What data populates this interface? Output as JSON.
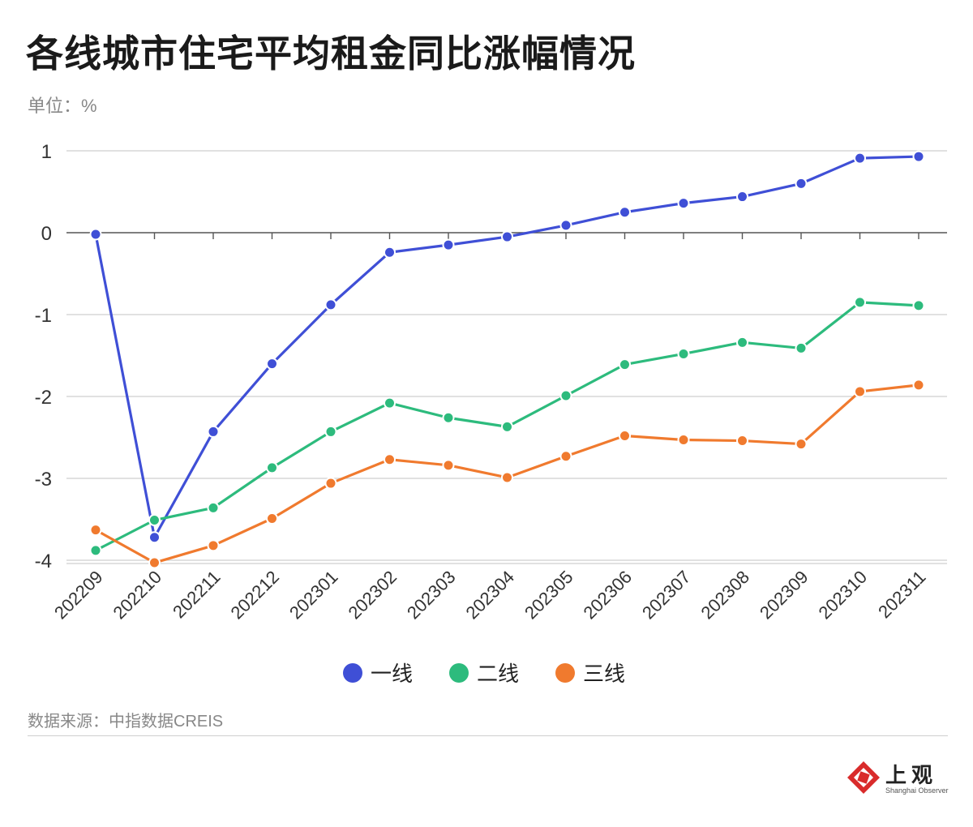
{
  "title": "各线城市住宅平均租金同比涨幅情况",
  "unit": "单位：%",
  "source": "数据来源：中指数据CREIS",
  "logo": {
    "cn": "上观",
    "en": "Shanghai Observer"
  },
  "chart_data": {
    "type": "line",
    "categories": [
      "202209",
      "202210",
      "202211",
      "202212",
      "202301",
      "202302",
      "202303",
      "202304",
      "202305",
      "202306",
      "202307",
      "202308",
      "202309",
      "202310",
      "202311"
    ],
    "ylim": [
      -4,
      1
    ],
    "yticks": [
      1,
      0,
      -1,
      -2,
      -3,
      -4
    ],
    "grid": true,
    "legend_position": "bottom",
    "series": [
      {
        "name": "一线",
        "color": "#3f4fd6",
        "values": [
          -0.02,
          -3.72,
          -2.43,
          -1.6,
          -0.88,
          -0.24,
          -0.15,
          -0.05,
          0.09,
          0.25,
          0.36,
          0.44,
          0.6,
          0.91,
          0.93
        ]
      },
      {
        "name": "二线",
        "color": "#2dbb7d",
        "values": [
          -3.88,
          -3.51,
          -3.36,
          -2.87,
          -2.43,
          -2.08,
          -2.26,
          -2.37,
          -1.99,
          -1.61,
          -1.48,
          -1.34,
          -1.41,
          -0.85,
          -0.89
        ]
      },
      {
        "name": "三线",
        "color": "#f07a2e",
        "values": [
          -3.63,
          -4.03,
          -3.82,
          -3.49,
          -3.06,
          -2.77,
          -2.84,
          -2.99,
          -2.73,
          -2.48,
          -2.53,
          -2.54,
          -2.58,
          -1.94,
          -1.86
        ]
      }
    ]
  }
}
